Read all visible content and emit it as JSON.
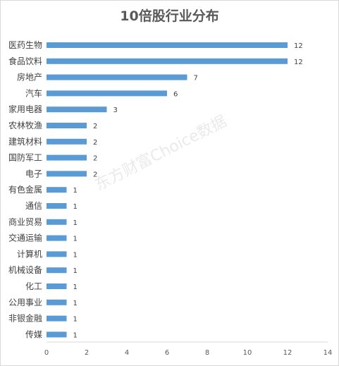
{
  "chart_data": {
    "type": "bar",
    "orientation": "horizontal",
    "title": "10倍股行业分布",
    "categories": [
      "医药生物",
      "食品饮料",
      "房地产",
      "汽车",
      "家用电器",
      "农林牧渔",
      "建筑材料",
      "国防军工",
      "电子",
      "有色金属",
      "通信",
      "商业贸易",
      "交通运输",
      "计算机",
      "机械设备",
      "化工",
      "公用事业",
      "非银金融",
      "传媒"
    ],
    "values": [
      12,
      12,
      7,
      6,
      3,
      2,
      2,
      2,
      2,
      1,
      1,
      1,
      1,
      1,
      1,
      1,
      1,
      1,
      1
    ],
    "xlim": [
      0,
      14
    ],
    "xticks": [
      0,
      2,
      4,
      6,
      8,
      10,
      12,
      14
    ],
    "xlabel": "",
    "ylabel": "",
    "grid": false,
    "legend": "none",
    "bar_color": "#5b9bd5"
  },
  "watermark": "东方财富Choice数据"
}
